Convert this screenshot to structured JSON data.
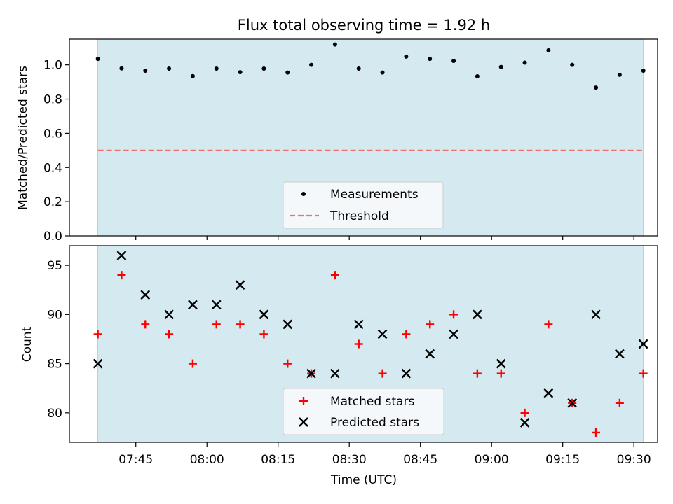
{
  "chart_data": {
    "title": "Flux total observing time = 1.92 h",
    "xlabel": "Time (UTC)",
    "x_tick_labels": [
      "07:45",
      "08:00",
      "08:15",
      "08:30",
      "08:45",
      "09:00",
      "09:15",
      "09:30"
    ],
    "x_ticks": [
      "07:45",
      "08:00",
      "08:15",
      "08:30",
      "08:45",
      "09:00",
      "09:15",
      "09:30"
    ],
    "xlim": [
      "07:31",
      "09:35"
    ],
    "observing_window": [
      "07:37",
      "09:32"
    ],
    "times": [
      "07:37",
      "07:42",
      "07:47",
      "07:52",
      "07:57",
      "08:02",
      "08:07",
      "08:12",
      "08:17",
      "08:22",
      "08:27",
      "08:32",
      "08:37",
      "08:42",
      "08:47",
      "08:52",
      "08:57",
      "09:02",
      "09:07",
      "09:12",
      "09:17",
      "09:22",
      "09:27",
      "09:32"
    ],
    "colors": {
      "band": "#d4eaf0",
      "band_edge": "#a8d4dc",
      "threshold": "#f07070",
      "measurement": "#000000",
      "matched": "#ff0000",
      "predicted": "#000000"
    },
    "top": {
      "type": "scatter",
      "ylabel": "Matched/Predicted stars",
      "ylim": [
        0.0,
        1.15
      ],
      "yticks": [
        0.0,
        0.2,
        0.4,
        0.6,
        0.8,
        1.0
      ],
      "ytick_labels": [
        "0.0",
        "0.2",
        "0.4",
        "0.6",
        "0.8",
        "1.0"
      ],
      "threshold": 0.5,
      "series": [
        {
          "name": "Measurements",
          "values": [
            1.035,
            0.979,
            0.966,
            0.978,
            0.934,
            0.978,
            0.957,
            0.978,
            0.955,
            1.0,
            1.119,
            0.978,
            0.955,
            1.048,
            1.035,
            1.023,
            0.933,
            0.988,
            1.013,
            1.085,
            1.0,
            0.867,
            0.942,
            0.966
          ]
        }
      ],
      "legend": {
        "position": "lower center",
        "items": [
          "Measurements",
          "Threshold"
        ]
      }
    },
    "bottom": {
      "type": "scatter",
      "ylabel": "Count",
      "ylim": [
        77,
        97
      ],
      "yticks": [
        80,
        85,
        90,
        95
      ],
      "ytick_labels": [
        "80",
        "85",
        "90",
        "95"
      ],
      "series": [
        {
          "name": "Matched stars",
          "values": [
            88,
            94,
            89,
            88,
            85,
            89,
            89,
            88,
            85,
            84,
            94,
            87,
            84,
            88,
            89,
            90,
            84,
            84,
            80,
            89,
            81,
            78,
            81,
            84
          ]
        },
        {
          "name": "Predicted stars",
          "values": [
            85,
            96,
            92,
            90,
            91,
            91,
            93,
            90,
            89,
            84,
            84,
            89,
            88,
            84,
            86,
            88,
            90,
            85,
            79,
            82,
            81,
            90,
            86,
            87
          ]
        }
      ],
      "legend": {
        "position": "lower center",
        "items": [
          "Matched stars",
          "Predicted stars"
        ]
      }
    }
  }
}
